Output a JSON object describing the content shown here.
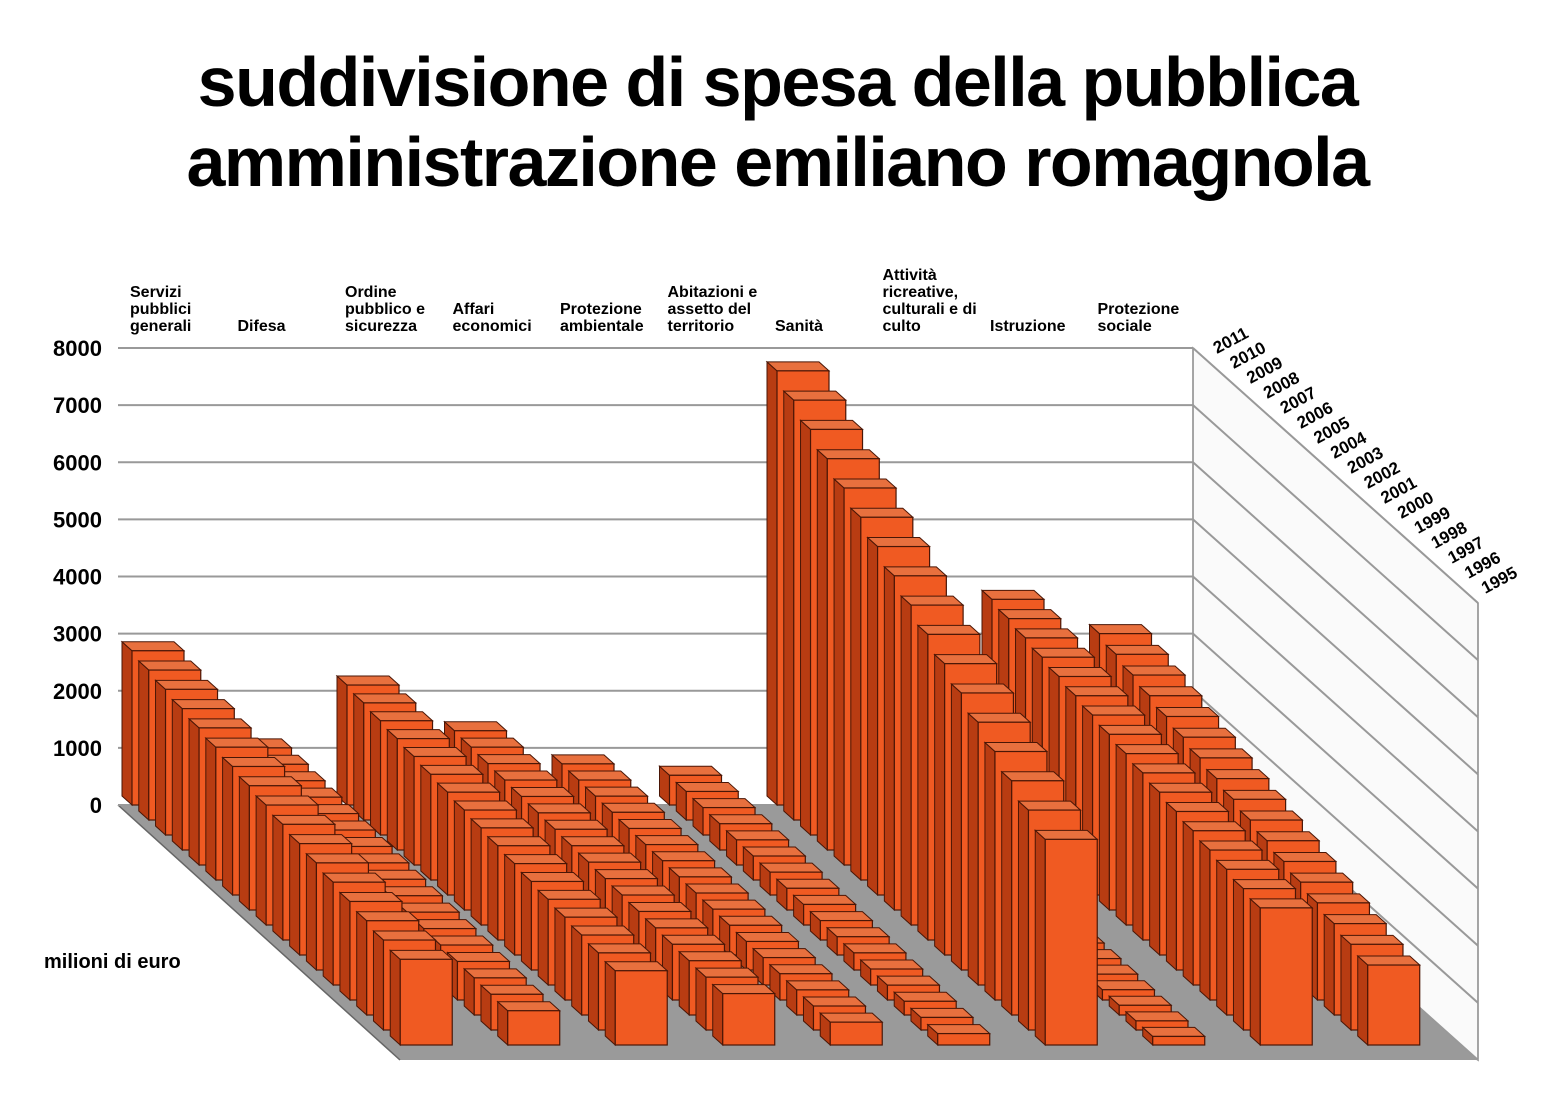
{
  "chart_data": {
    "type": "bar3d",
    "title": "suddivisione di spesa della pubblica amministrazione emiliano romagnola",
    "y_label": "milioni di euro",
    "categories": [
      "Servizi pubblici generali",
      "Difesa",
      "Ordine pubblico e sicurezza",
      "Affari economici",
      "Protezione ambientale",
      "Abitazioni e assetto del territorio",
      "Sanità",
      "Attività ricreative, culturali e di culto",
      "Istruzione",
      "Protezione sociale"
    ],
    "color": "#f05a22",
    "ylim": [
      0,
      8000
    ],
    "yticks": [
      0,
      1000,
      2000,
      3000,
      4000,
      5000,
      6000,
      7000,
      8000
    ],
    "grid": true,
    "series": [
      {
        "name": "1995",
        "values": [
          1500,
          600,
          1300,
          900,
          400,
          200,
          3600,
          150,
          2400,
          1400
        ]
      },
      {
        "name": "1996",
        "values": [
          1575,
          625,
          1350,
          925,
          420,
          220,
          3850,
          160,
          2475,
          1500
        ]
      },
      {
        "name": "1997",
        "values": [
          1650,
          650,
          1400,
          950,
          440,
          240,
          4100,
          170,
          2550,
          1600
        ]
      },
      {
        "name": "1998",
        "values": [
          1725,
          675,
          1450,
          975,
          460,
          260,
          4350,
          180,
          2625,
          1700
        ]
      },
      {
        "name": "1999",
        "values": [
          1800,
          700,
          1500,
          1000,
          480,
          280,
          4600,
          190,
          2700,
          1800
        ]
      },
      {
        "name": "2000",
        "values": [
          1875,
          725,
          1550,
          1025,
          500,
          300,
          4850,
          200,
          2775,
          1900
        ]
      },
      {
        "name": "2001",
        "values": [
          1950,
          750,
          1600,
          1050,
          520,
          320,
          5100,
          210,
          2850,
          2000
        ]
      },
      {
        "name": "2002",
        "values": [
          2025,
          775,
          1650,
          1075,
          540,
          340,
          5350,
          220,
          2925,
          2100
        ]
      },
      {
        "name": "2003",
        "values": [
          2100,
          800,
          1700,
          1100,
          560,
          360,
          5600,
          230,
          3000,
          2200
        ]
      },
      {
        "name": "2004",
        "values": [
          2175,
          825,
          1750,
          1125,
          580,
          380,
          5850,
          240,
          3075,
          2300
        ]
      },
      {
        "name": "2005",
        "values": [
          2250,
          850,
          1800,
          1150,
          600,
          400,
          6100,
          250,
          3150,
          2400
        ]
      },
      {
        "name": "2006",
        "values": [
          2325,
          875,
          1850,
          1175,
          620,
          420,
          6350,
          260,
          3225,
          2500
        ]
      },
      {
        "name": "2007",
        "values": [
          2400,
          900,
          1900,
          1200,
          640,
          440,
          6600,
          270,
          3300,
          2600
        ]
      },
      {
        "name": "2008",
        "values": [
          2475,
          925,
          1950,
          1225,
          660,
          460,
          6850,
          280,
          3375,
          2700
        ]
      },
      {
        "name": "2009",
        "values": [
          2550,
          950,
          2000,
          1250,
          680,
          480,
          7100,
          290,
          3450,
          2800
        ]
      },
      {
        "name": "2010",
        "values": [
          2625,
          975,
          2050,
          1275,
          700,
          500,
          7350,
          300,
          3525,
          2900
        ]
      },
      {
        "name": "2011",
        "values": [
          2700,
          1000,
          2100,
          1300,
          720,
          520,
          7600,
          310,
          3600,
          3000
        ]
      }
    ]
  }
}
